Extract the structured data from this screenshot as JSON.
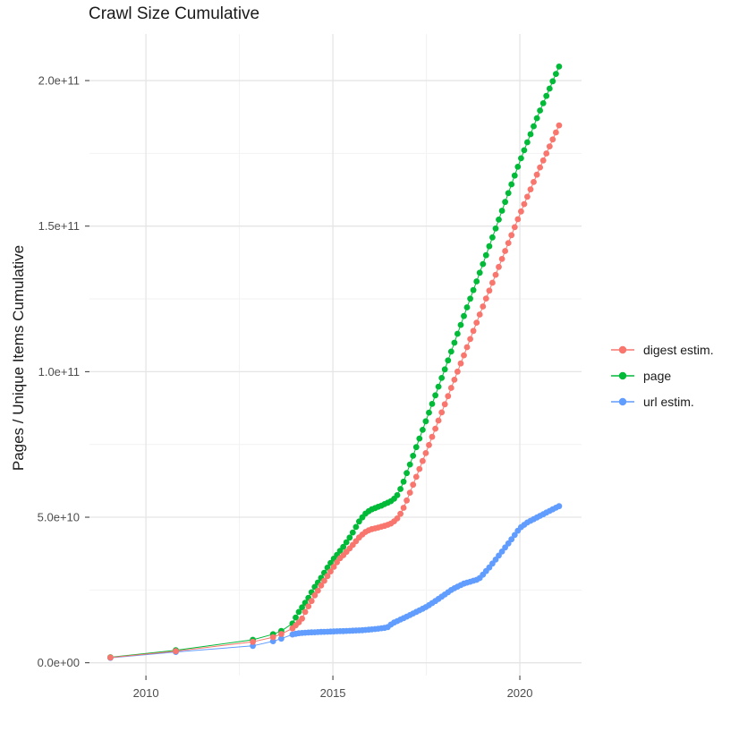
{
  "chart_data": {
    "type": "scatter",
    "title": "Crawl Size Cumulative",
    "xlabel": "",
    "ylabel": "Pages / Unique Items Cumulative",
    "value_unit": "items, values stored as multiples of 1e9",
    "xlim": [
      2008.49,
      2021.65
    ],
    "ylim_e9": [
      -4.4,
      216
    ],
    "grid": true,
    "legend_position": "right",
    "x_major_ticks": [
      {
        "value": 2010,
        "label": "2010"
      },
      {
        "value": 2015,
        "label": "2015"
      },
      {
        "value": 2020,
        "label": "2020"
      }
    ],
    "x_minor_ticks": [
      2012.5,
      2017.5
    ],
    "y_major_ticks": [
      {
        "value_e9": 0,
        "label": "0.0e+00"
      },
      {
        "value_e9": 50,
        "label": "5.0e+10"
      },
      {
        "value_e9": 100,
        "label": "1.0e+11"
      },
      {
        "value_e9": 150,
        "label": "1.5e+11"
      },
      {
        "value_e9": 200,
        "label": "2.0e+11"
      }
    ],
    "y_minor_ticks_e9": [
      25,
      75,
      125,
      175
    ],
    "sampling": {
      "sparse_years": [
        2009.05,
        2010.8,
        2012.86,
        2013.4,
        2013.62
      ],
      "dense_start": 2013.92,
      "dense_end": 2021.05,
      "dense_points": 85
    },
    "series": [
      {
        "name": "digest estim.",
        "color": "#F8766D",
        "anchors_year_value_e9": [
          [
            2009.05,
            1.8
          ],
          [
            2010.8,
            4.0
          ],
          [
            2012.86,
            7.2
          ],
          [
            2013.4,
            8.8
          ],
          [
            2013.62,
            9.9
          ],
          [
            2013.92,
            11.8
          ],
          [
            2014.1,
            14.0
          ],
          [
            2014.2,
            15.6
          ],
          [
            2014.28,
            18.1
          ],
          [
            2014.4,
            20.5
          ],
          [
            2014.49,
            22.7
          ],
          [
            2014.6,
            24.8
          ],
          [
            2014.7,
            26.9
          ],
          [
            2014.8,
            28.7
          ],
          [
            2014.9,
            30.7
          ],
          [
            2015.0,
            32.5
          ],
          [
            2015.09,
            34.2
          ],
          [
            2015.19,
            35.9
          ],
          [
            2015.29,
            37.1
          ],
          [
            2015.5,
            40.0
          ],
          [
            2015.7,
            43.0
          ],
          [
            2015.85,
            44.8
          ],
          [
            2016.0,
            45.8
          ],
          [
            2016.2,
            46.4
          ],
          [
            2016.4,
            47.1
          ],
          [
            2016.55,
            47.8
          ],
          [
            2016.7,
            49.2
          ],
          [
            2016.85,
            52.0
          ],
          [
            2017.0,
            56.5
          ],
          [
            2017.5,
            72.5
          ],
          [
            2018.0,
            89.0
          ],
          [
            2018.5,
            105.5
          ],
          [
            2019.0,
            122.0
          ],
          [
            2019.5,
            138.0
          ],
          [
            2020.0,
            154.1
          ],
          [
            2020.5,
            169.0
          ],
          [
            2021.05,
            184.6
          ]
        ]
      },
      {
        "name": "page",
        "color": "#00BA38",
        "anchors_year_value_e9": [
          [
            2009.05,
            1.9
          ],
          [
            2010.8,
            4.3
          ],
          [
            2012.86,
            7.9
          ],
          [
            2013.4,
            9.8
          ],
          [
            2013.62,
            10.9
          ],
          [
            2013.92,
            13.5
          ],
          [
            2014.07,
            17.1
          ],
          [
            2014.2,
            19.5
          ],
          [
            2014.31,
            21.5
          ],
          [
            2014.41,
            23.8
          ],
          [
            2014.51,
            26.0
          ],
          [
            2014.63,
            28.1
          ],
          [
            2014.73,
            30.1
          ],
          [
            2014.82,
            32.0
          ],
          [
            2014.91,
            33.8
          ],
          [
            2015.02,
            35.7
          ],
          [
            2015.11,
            37.1
          ],
          [
            2015.3,
            40.2
          ],
          [
            2015.5,
            44.0
          ],
          [
            2015.7,
            48.5
          ],
          [
            2015.85,
            51.0
          ],
          [
            2016.0,
            52.5
          ],
          [
            2016.3,
            54.0
          ],
          [
            2016.6,
            55.8
          ],
          [
            2016.75,
            58.0
          ],
          [
            2016.9,
            62.5
          ],
          [
            2017.0,
            66.0
          ],
          [
            2017.5,
            83.5
          ],
          [
            2018.0,
            101.0
          ],
          [
            2018.5,
            119.0
          ],
          [
            2019.0,
            136.5
          ],
          [
            2019.5,
            154.5
          ],
          [
            2020.0,
            172.3
          ],
          [
            2020.5,
            188.5
          ],
          [
            2021.05,
            204.8
          ]
        ]
      },
      {
        "name": "url estim.",
        "color": "#619CFF",
        "anchors_year_value_e9": [
          [
            2009.05,
            1.7
          ],
          [
            2010.8,
            3.7
          ],
          [
            2012.86,
            5.8
          ],
          [
            2013.4,
            7.4
          ],
          [
            2013.62,
            8.3
          ],
          [
            2013.92,
            9.7
          ],
          [
            2014.05,
            10.1
          ],
          [
            2014.3,
            10.35
          ],
          [
            2014.6,
            10.55
          ],
          [
            2014.9,
            10.7
          ],
          [
            2015.2,
            10.85
          ],
          [
            2015.5,
            11.0
          ],
          [
            2015.8,
            11.2
          ],
          [
            2016.0,
            11.4
          ],
          [
            2016.2,
            11.7
          ],
          [
            2016.45,
            12.1
          ],
          [
            2016.6,
            13.6
          ],
          [
            2016.8,
            14.8
          ],
          [
            2017.0,
            16.0
          ],
          [
            2017.25,
            17.6
          ],
          [
            2017.5,
            19.2
          ],
          [
            2017.75,
            21.3
          ],
          [
            2018.0,
            23.5
          ],
          [
            2018.2,
            25.3
          ],
          [
            2018.5,
            27.2
          ],
          [
            2018.9,
            28.7
          ],
          [
            2019.05,
            30.8
          ],
          [
            2019.2,
            33.0
          ],
          [
            2019.4,
            36.2
          ],
          [
            2019.6,
            39.5
          ],
          [
            2019.8,
            42.8
          ],
          [
            2020.0,
            46.3
          ],
          [
            2020.2,
            48.2
          ],
          [
            2020.5,
            50.2
          ],
          [
            2020.8,
            52.2
          ],
          [
            2021.05,
            53.8
          ]
        ]
      }
    ],
    "style_colors": {
      "major_grid": "#E5E5E5",
      "minor_grid": "#F2F2F2",
      "tick_mark": "#333333",
      "tick_label": "#4D4D4D"
    }
  }
}
